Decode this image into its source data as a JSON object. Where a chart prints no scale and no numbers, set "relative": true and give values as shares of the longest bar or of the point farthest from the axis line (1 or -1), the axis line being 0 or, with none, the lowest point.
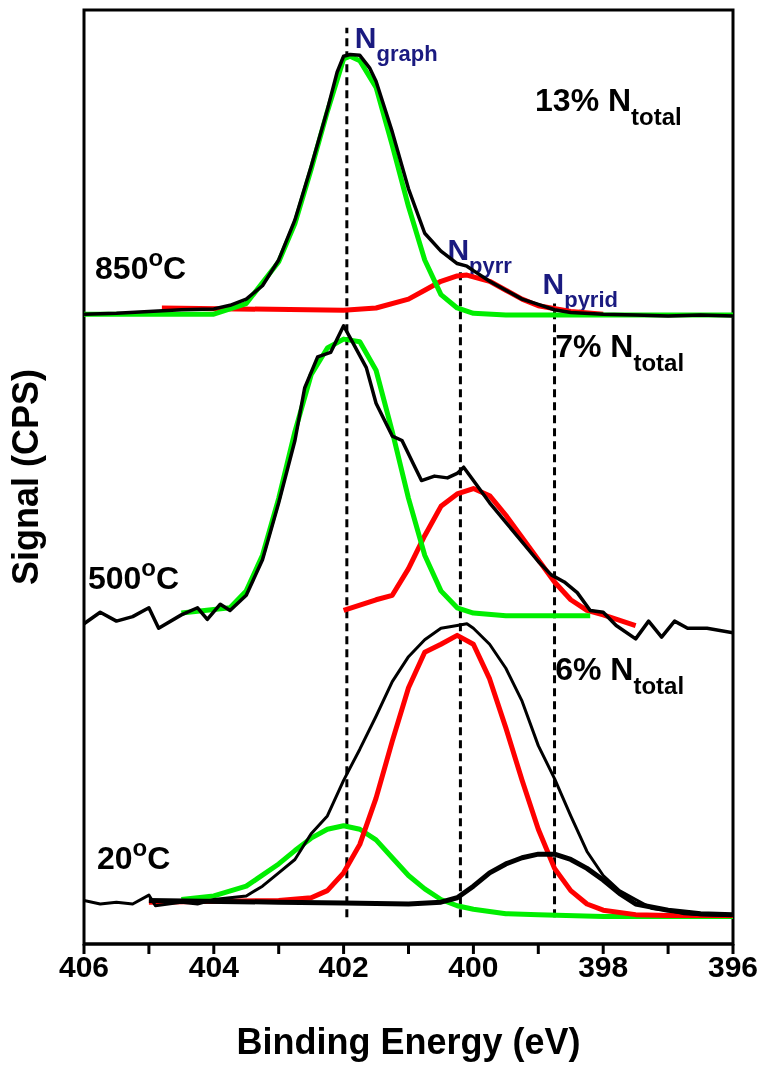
{
  "chart_data": {
    "type": "line",
    "relative": true,
    "xlabel": "Binding Energy (eV)",
    "ylabel": "Signal (CPS)",
    "xlim": [
      406,
      396
    ],
    "xticks": [
      406,
      {
        "value": 405,
        "label": null
      },
      404,
      {
        "value": 403,
        "label": null
      },
      402,
      {
        "value": 401,
        "label": null
      },
      400,
      {
        "value": 399,
        "label": null
      },
      398,
      {
        "value": 397,
        "label": null
      },
      396
    ],
    "series": [
      {
        "type": "line",
        "color": "#ff0000",
        "x": [
          404.8,
          402,
          401.5,
          401,
          400.75,
          400.5,
          400.25,
          400.1,
          399.75,
          399.5,
          399.25,
          399,
          398.5,
          398
        ],
        "values": [
          0.715,
          0.7125,
          0.715,
          0.725,
          0.735,
          0.745,
          0.751,
          0.752,
          0.745,
          0.735,
          0.725,
          0.7175,
          0.711,
          0.708
        ]
      },
      {
        "type": "line",
        "color": "#00ee00",
        "x": [
          406,
          404,
          403.5,
          403,
          402.75,
          402.5,
          402.25,
          402,
          401.9,
          401.75,
          401.5,
          401.25,
          401,
          400.75,
          400.5,
          400.25,
          400,
          399.5,
          396
        ],
        "values": [
          0.708,
          0.708,
          0.72,
          0.767,
          0.81,
          0.871,
          0.936,
          0.995,
          0.998,
          0.993,
          0.963,
          0.898,
          0.829,
          0.769,
          0.73,
          0.715,
          0.709,
          0.707,
          0.707
        ]
      },
      {
        "type": "line",
        "color": "#000000",
        "x": [
          406,
          405.5,
          405,
          404.5,
          404,
          403.75,
          403.5,
          403.25,
          403,
          402.75,
          402.5,
          402.25,
          402.1,
          402,
          401.9,
          401.75,
          401.6,
          401.5,
          401.25,
          401,
          400.75,
          400.5,
          400.25,
          400.1,
          400,
          399.75,
          399.5,
          399.25,
          399,
          398.75,
          398.5,
          398,
          397.5,
          397,
          396.5,
          396
        ],
        "values": [
          0.708,
          0.709,
          0.711,
          0.713,
          0.714,
          0.718,
          0.725,
          0.74,
          0.769,
          0.814,
          0.874,
          0.938,
          0.98,
          0.998,
          1,
          0.999,
          0.985,
          0.97,
          0.913,
          0.849,
          0.799,
          0.779,
          0.765,
          0.762,
          0.757,
          0.745,
          0.735,
          0.725,
          0.719,
          0.713,
          0.71,
          0.708,
          0.707,
          0.706,
          0.707,
          0.706
        ]
      },
      {
        "type": "line",
        "color": "#ff0000",
        "x": [
          402,
          401.5,
          401.25,
          401,
          400.75,
          400.5,
          400.25,
          400,
          399.75,
          399.5,
          399.25,
          399,
          398.75,
          398.5,
          398.25,
          398,
          397.5
        ],
        "values": [
          0.375,
          0.387,
          0.392,
          0.422,
          0.459,
          0.492,
          0.506,
          0.512,
          0.504,
          0.482,
          0.457,
          0.432,
          0.407,
          0.387,
          0.375,
          0.37,
          0.358
        ]
      },
      {
        "type": "line",
        "color": "#00ee00",
        "x": [
          404.5,
          403.75,
          403.5,
          403.25,
          403,
          402.75,
          402.5,
          402.25,
          402,
          401.75,
          401.5,
          401.25,
          401,
          400.75,
          400.5,
          400.25,
          400,
          399.5,
          398.2
        ],
        "values": [
          0.372,
          0.378,
          0.397,
          0.437,
          0.501,
          0.576,
          0.64,
          0.67,
          0.68,
          0.677,
          0.645,
          0.576,
          0.501,
          0.437,
          0.397,
          0.378,
          0.372,
          0.369,
          0.369
        ]
      },
      {
        "type": "line",
        "color": "#000000",
        "x": [
          406,
          405.75,
          405.5,
          405.25,
          405,
          404.85,
          404.5,
          404.25,
          404.1,
          403.9,
          403.75,
          403.5,
          403.25,
          403,
          402.75,
          402.6,
          402.4,
          402.2,
          402.1,
          402,
          401.85,
          401.65,
          401.5,
          401.25,
          401.1,
          400.9,
          400.8,
          400.6,
          400.4,
          400.25,
          400.15,
          400,
          399.75,
          399.5,
          399.25,
          399,
          398.8,
          398.6,
          398.4,
          398.2,
          398,
          397.8,
          397.5,
          397.3,
          397.1,
          396.9,
          396.7,
          396.4,
          396
        ],
        "values": [
          0.36,
          0.373,
          0.363,
          0.368,
          0.378,
          0.355,
          0.37,
          0.378,
          0.365,
          0.382,
          0.375,
          0.392,
          0.432,
          0.496,
          0.566,
          0.625,
          0.66,
          0.665,
          0.68,
          0.695,
          0.675,
          0.648,
          0.608,
          0.571,
          0.566,
          0.536,
          0.521,
          0.526,
          0.524,
          0.529,
          0.536,
          0.521,
          0.496,
          0.474,
          0.452,
          0.43,
          0.415,
          0.407,
          0.395,
          0.375,
          0.373,
          0.358,
          0.343,
          0.363,
          0.345,
          0.363,
          0.355,
          0.355,
          0.35
        ]
      },
      {
        "type": "line",
        "color": "#00ee00",
        "x": [
          404.5,
          404,
          403.5,
          403,
          402.75,
          402.5,
          402.25,
          402,
          401.75,
          401.5,
          401.25,
          401,
          400.75,
          400.5,
          400.25,
          400,
          399.5,
          399,
          398,
          397,
          396
        ],
        "values": [
          0.05,
          0.054,
          0.065,
          0.09,
          0.105,
          0.119,
          0.129,
          0.133,
          0.129,
          0.117,
          0.097,
          0.077,
          0.062,
          0.05,
          0.043,
          0.039,
          0.034,
          0.033,
          0.031,
          0.031,
          0.031
        ]
      },
      {
        "type": "line",
        "color": "#ff0000",
        "x": [
          405,
          403,
          402.5,
          402.25,
          402,
          401.75,
          401.5,
          401.25,
          401,
          400.75,
          400.5,
          400.25,
          400,
          399.75,
          399.5,
          399.25,
          399,
          398.75,
          398.5,
          398.25,
          398,
          397.5,
          397,
          396
        ],
        "values": [
          0.047,
          0.049,
          0.052,
          0.06,
          0.08,
          0.112,
          0.164,
          0.228,
          0.288,
          0.328,
          0.337,
          0.347,
          0.337,
          0.298,
          0.243,
          0.184,
          0.129,
          0.085,
          0.06,
          0.045,
          0.038,
          0.033,
          0.032,
          0.032
        ]
      },
      {
        "type": "line",
        "color": "#000000",
        "x": [
          405,
          403,
          402,
          401,
          400.5,
          400.25,
          400,
          399.75,
          399.5,
          399.25,
          399,
          398.75,
          398.5,
          398.25,
          398,
          397.75,
          397.5,
          397,
          396.5,
          396
        ],
        "values": [
          0.049,
          0.047,
          0.046,
          0.045,
          0.047,
          0.052,
          0.065,
          0.08,
          0.09,
          0.097,
          0.101,
          0.101,
          0.095,
          0.085,
          0.072,
          0.057,
          0.045,
          0.038,
          0.034,
          0.033
        ]
      },
      {
        "type": "line",
        "color": "#000000",
        "x": [
          406,
          405.75,
          405.5,
          405.25,
          405,
          404.9,
          404.5,
          404.25,
          404,
          403.75,
          403.5,
          403.25,
          403,
          402.75,
          402.5,
          402.25,
          402,
          401.75,
          401.5,
          401.25,
          401,
          400.75,
          400.5,
          400.25,
          400.1,
          400,
          399.75,
          399.5,
          399.25,
          399,
          398.75,
          398.5,
          398.25,
          398,
          397.75,
          397.5,
          397.25,
          397,
          396.75,
          396.5,
          396
        ],
        "values": [
          0.049,
          0.045,
          0.047,
          0.045,
          0.055,
          0.043,
          0.047,
          0.045,
          0.05,
          0.052,
          0.054,
          0.065,
          0.08,
          0.095,
          0.124,
          0.144,
          0.184,
          0.219,
          0.256,
          0.295,
          0.323,
          0.342,
          0.355,
          0.358,
          0.36,
          0.355,
          0.337,
          0.31,
          0.273,
          0.223,
          0.186,
          0.144,
          0.104,
          0.077,
          0.06,
          0.05,
          0.04,
          0.038,
          0.034,
          0.033,
          0.032
        ]
      }
    ],
    "ref_lines": [
      {
        "axis": "x",
        "value": 401.95,
        "label": "N$_{graph}$",
        "color": "#000000",
        "line_style": "dashed"
      },
      {
        "axis": "x",
        "value": 400.2,
        "label": "N$_{pyrr}$",
        "color": "#000000",
        "line_style": "dashed"
      },
      {
        "axis": "x",
        "value": 398.75,
        "label": "N$_{pyrid}$",
        "color": "#000000",
        "line_style": "dashed"
      }
    ],
    "annotations": [
      "850$^{o}$C",
      "13% N$_{total}$",
      "500$^{o}$C",
      "7% N$_{total}$",
      "20$^{o}$C",
      "6% N$_{total}$"
    ]
  }
}
